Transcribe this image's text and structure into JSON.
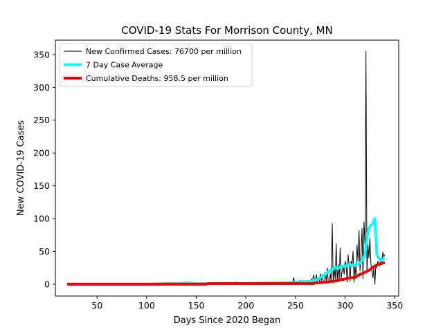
{
  "chart_data": {
    "type": "line",
    "title": "COVID-19 Stats For Morrison County, MN",
    "xlabel": "Days Since 2020 Began",
    "ylabel": "New COVID-19 Cases",
    "xlim": [
      8,
      354
    ],
    "ylim": [
      -18,
      372
    ],
    "xticks": [
      50,
      100,
      150,
      200,
      250,
      300,
      350
    ],
    "yticks": [
      0,
      50,
      100,
      150,
      200,
      250,
      300,
      350
    ],
    "legend_position": "top-left",
    "series": [
      {
        "name": "New Confirmed Cases: 76700 per million",
        "color": "#000000",
        "linewidth": 1,
        "x": [
          20,
          40,
          60,
          80,
          100,
          110,
          120,
          125,
          128,
          130,
          133,
          136,
          139,
          142,
          145,
          148,
          152,
          156,
          160,
          165,
          170,
          175,
          180,
          185,
          190,
          195,
          200,
          205,
          208,
          211,
          215,
          219,
          222,
          225,
          228,
          232,
          236,
          240,
          244,
          247,
          248,
          249,
          251,
          253,
          255,
          257,
          259,
          261,
          263,
          265,
          266,
          267,
          268,
          270,
          271,
          272,
          274,
          275,
          276,
          277,
          278,
          279,
          280,
          281,
          282,
          283,
          284,
          285,
          286,
          287,
          288,
          289,
          290,
          291,
          292,
          293,
          294,
          295,
          296,
          297,
          298,
          299,
          300,
          301,
          302,
          303,
          304,
          305,
          306,
          307,
          308,
          309,
          310,
          311,
          312,
          313,
          314,
          315,
          316,
          317,
          318,
          319,
          320,
          321,
          322,
          323,
          324,
          325,
          326,
          327,
          328,
          329,
          330,
          331,
          332,
          333,
          334,
          335,
          336,
          337,
          338,
          339,
          340
        ],
        "y": [
          0,
          0,
          0,
          0,
          0,
          0,
          1,
          0,
          2,
          1,
          0,
          2,
          1,
          3,
          1,
          0,
          2,
          1,
          2,
          1,
          0,
          2,
          1,
          0,
          3,
          1,
          2,
          0,
          3,
          1,
          2,
          1,
          3,
          0,
          2,
          1,
          3,
          2,
          4,
          1,
          10,
          3,
          4,
          2,
          6,
          3,
          5,
          4,
          3,
          4,
          8,
          3,
          14,
          4,
          15,
          2,
          3,
          16,
          4,
          15,
          3,
          2,
          18,
          5,
          25,
          4,
          2,
          16,
          3,
          93,
          2,
          25,
          8,
          62,
          3,
          30,
          4,
          55,
          8,
          20,
          28,
          15,
          35,
          30,
          3,
          45,
          28,
          5,
          35,
          30,
          50,
          3,
          28,
          10,
          60,
          35,
          82,
          20,
          45,
          85,
          8,
          95,
          60,
          355,
          20,
          60,
          40,
          70,
          30,
          20,
          10,
          25,
          0,
          30,
          25,
          35,
          30,
          28,
          40,
          33,
          49,
          42,
          45
        ]
      },
      {
        "name": "7 Day Case Average",
        "color": "#00ffff",
        "linewidth": 4,
        "x": [
          20,
          100,
          120,
          130,
          140,
          150,
          160,
          200,
          240,
          250,
          260,
          265,
          270,
          275,
          280,
          284,
          288,
          290,
          293,
          296,
          300,
          305,
          310,
          315,
          318,
          320,
          322,
          324,
          326,
          328,
          330,
          332,
          334,
          336,
          338,
          340
        ],
        "y": [
          0,
          0,
          1,
          1,
          2,
          1,
          1,
          1,
          2,
          3,
          4,
          4,
          6,
          10,
          15,
          20,
          23,
          26,
          24,
          28,
          27,
          30,
          29,
          32,
          38,
          45,
          70,
          85,
          90,
          92,
          100,
          45,
          40,
          36,
          38,
          40
        ]
      },
      {
        "name": "Cumulative Deaths: 958.5 per million",
        "color": "#ee0000",
        "linewidth": 4,
        "x": [
          20,
          60,
          100,
          120,
          160,
          162,
          200,
          240,
          250,
          268,
          270,
          280,
          290,
          300,
          305,
          310,
          315,
          320,
          325,
          330,
          335,
          340
        ],
        "y": [
          0,
          0,
          0,
          0,
          0,
          1,
          1,
          1,
          1,
          1,
          2,
          3,
          5,
          8,
          10,
          10,
          15,
          18,
          22,
          28,
          31,
          33
        ]
      }
    ]
  }
}
